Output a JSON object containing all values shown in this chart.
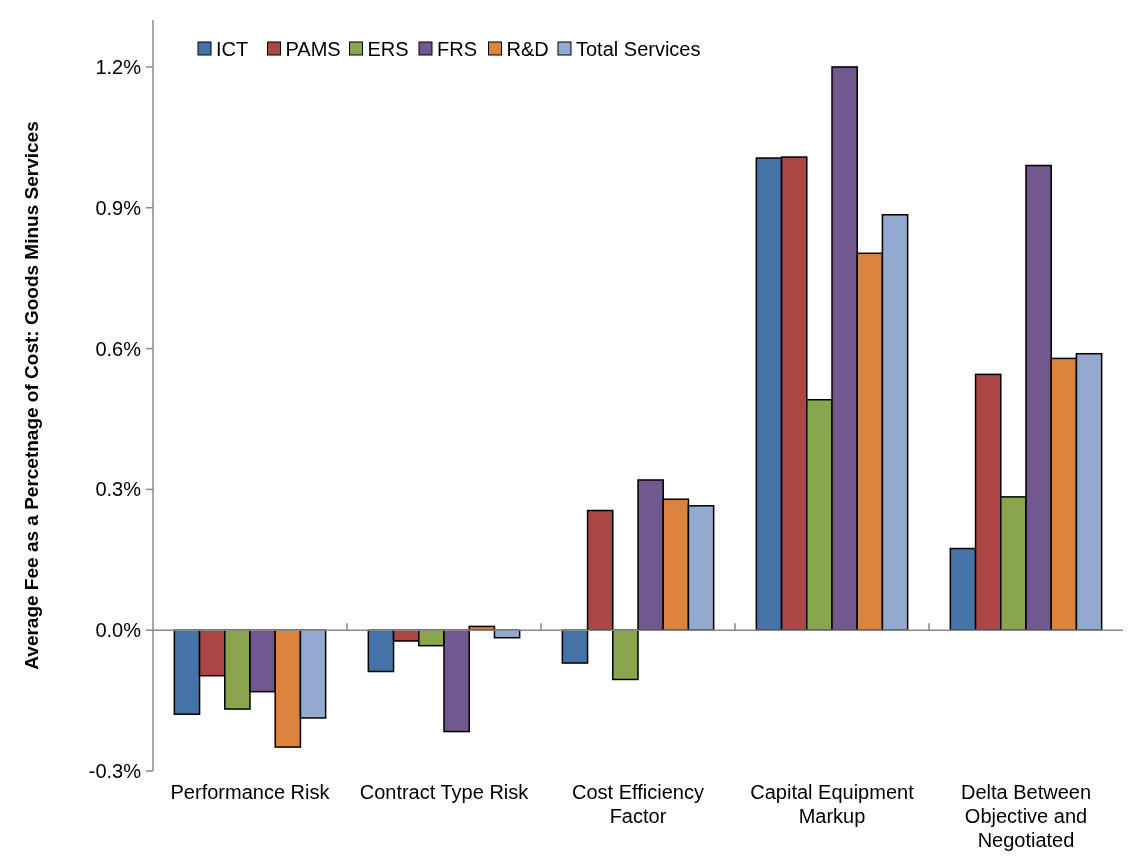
{
  "chart_data": {
    "type": "bar",
    "ylabel": "Average Fee as a Percetnage of Cost: Goods Minus Services",
    "categories": [
      "Performance Risk",
      "Contract Type Risk",
      "Cost Efficiency Factor",
      "Capital Equipment Markup",
      "Delta Between Objective and Negotiated"
    ],
    "series": [
      {
        "name": "ICT",
        "color": "#4572a7",
        "values": [
          -0.179,
          -0.088,
          -0.07,
          1.006,
          0.174
        ]
      },
      {
        "name": "PAMS",
        "color": "#aa4643",
        "values": [
          -0.097,
          -0.023,
          0.255,
          1.008,
          0.545
        ]
      },
      {
        "name": "ERS",
        "color": "#89a54e",
        "values": [
          -0.168,
          -0.033,
          -0.105,
          0.491,
          0.284
        ]
      },
      {
        "name": "FRS",
        "color": "#71588f",
        "values": [
          -0.131,
          -0.216,
          0.32,
          1.2,
          0.99
        ]
      },
      {
        "name": "R&D",
        "color": "#db843d",
        "values": [
          -0.249,
          0.008,
          0.279,
          0.803,
          0.579
        ]
      },
      {
        "name": "Total Services",
        "color": "#93a9cf",
        "values": [
          -0.187,
          -0.016,
          0.265,
          0.885,
          0.589
        ]
      }
    ],
    "ylim": [
      -0.3,
      1.3
    ],
    "yticks": [
      {
        "value": -0.3,
        "label": "-0.3%"
      },
      {
        "value": 0,
        "label": "0.0%"
      },
      {
        "value": 0.3,
        "label": "0.3%"
      },
      {
        "value": 0.6,
        "label": "0.6%"
      },
      {
        "value": 0.9,
        "label": "0.9%"
      },
      {
        "value": 1.2,
        "label": "1.2%"
      }
    ],
    "legend": "top left"
  }
}
